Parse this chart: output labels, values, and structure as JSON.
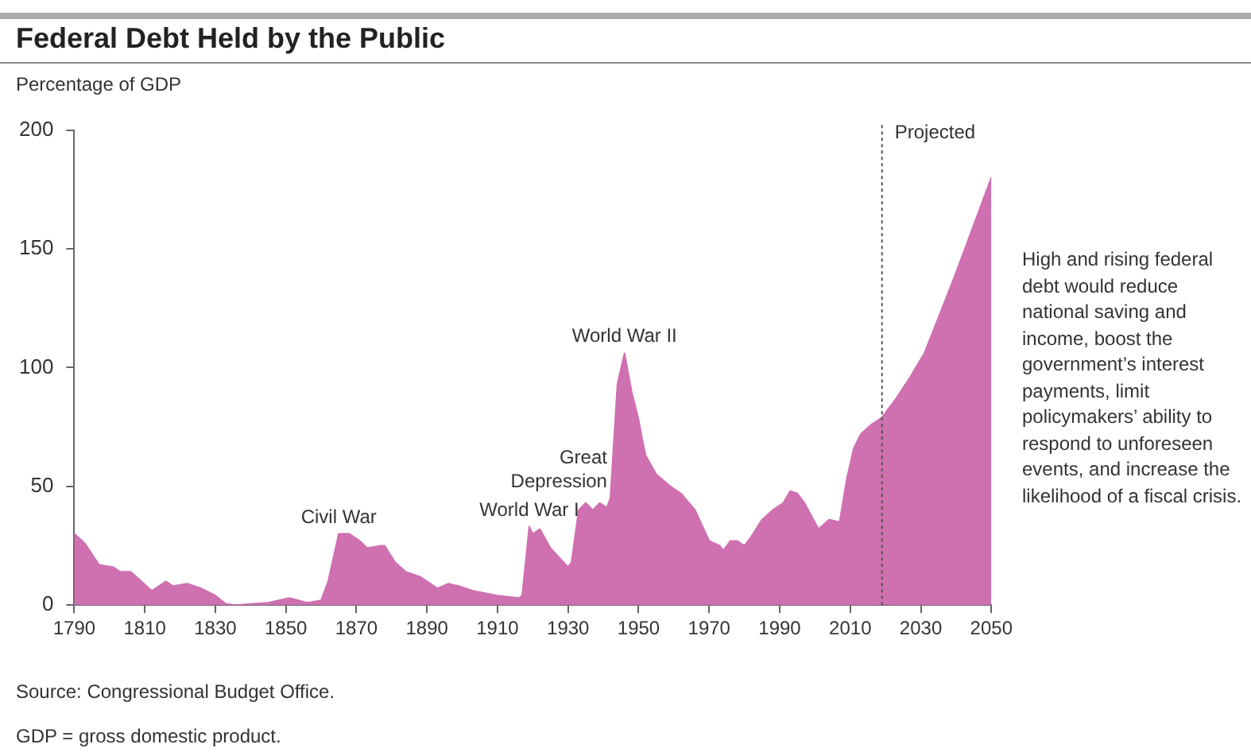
{
  "chart_data": {
    "type": "area",
    "title": "Federal Debt Held by the Public",
    "ylabel": "Percentage of GDP",
    "x": [
      1790,
      1793,
      1797,
      1801,
      1803,
      1806,
      1809,
      1812,
      1816,
      1818,
      1822,
      1826,
      1830,
      1833,
      1836,
      1840,
      1845,
      1851,
      1856,
      1860,
      1862,
      1865,
      1868,
      1871,
      1873,
      1877,
      1878,
      1881,
      1884,
      1888,
      1893,
      1896,
      1899,
      1903,
      1910,
      1916,
      1917,
      1919,
      1920,
      1922,
      1925,
      1930,
      1931,
      1933,
      1935,
      1937,
      1939,
      1941,
      1942,
      1944,
      1946,
      1948,
      1950,
      1951,
      1952,
      1955,
      1959,
      1962,
      1966,
      1970,
      1973,
      1974,
      1976,
      1978,
      1980,
      1982,
      1985,
      1988,
      1991,
      1993,
      1995,
      1997,
      2001,
      2004,
      2007,
      2009,
      2011,
      2013,
      2016,
      2019,
      2023,
      2027,
      2031,
      2035,
      2040,
      2045,
      2050
    ],
    "values": [
      30,
      26,
      17,
      16,
      14,
      14,
      10,
      6,
      10,
      8,
      9,
      7,
      4,
      0.5,
      0,
      0.5,
      1,
      3,
      1,
      2,
      10,
      30,
      30,
      27,
      24,
      25,
      25,
      18,
      14,
      12,
      7,
      9,
      8,
      6,
      4,
      3,
      4,
      33,
      30,
      32,
      24,
      16,
      18,
      40,
      43,
      40,
      43,
      41,
      45,
      93,
      106,
      90,
      78,
      70,
      63,
      55,
      50,
      47,
      40,
      27,
      25,
      23,
      27,
      27,
      25,
      29,
      36,
      40,
      43,
      48,
      47,
      43,
      32,
      36,
      35,
      53,
      66,
      72,
      76,
      79,
      87,
      96,
      106,
      121,
      140,
      160,
      180
    ],
    "color": "#cf70b1",
    "xlim": [
      1790,
      2050
    ],
    "ylim": [
      0,
      200
    ],
    "xticks": [
      1790,
      1810,
      1830,
      1850,
      1870,
      1890,
      1910,
      1930,
      1950,
      1970,
      1990,
      2010,
      2030,
      2050
    ],
    "yticks": [
      0,
      50,
      100,
      150,
      200
    ],
    "grid": false,
    "legend": false,
    "ref_lines": [
      {
        "axis": "x",
        "value": 2019,
        "label": "Projected",
        "line_style": "dotted",
        "color": "#555555"
      }
    ],
    "annotations": [
      {
        "text": "Civil War",
        "x": 1865,
        "y": 30
      },
      {
        "text": "World War I",
        "x": 1919,
        "y": 33
      },
      {
        "text": "Great\nDepression",
        "x": 1942,
        "y": 45
      },
      {
        "text": "World War II",
        "x": 1946,
        "y": 106
      },
      "High and rising federal debt would reduce national saving and income, boost the government’s interest payments, limit policymakers’ ability to respond to unforeseen events, and increase the likelihood of a fiscal crisis.",
      "Source: Congressional Budget Office.",
      "GDP = gross domestic product."
    ]
  }
}
